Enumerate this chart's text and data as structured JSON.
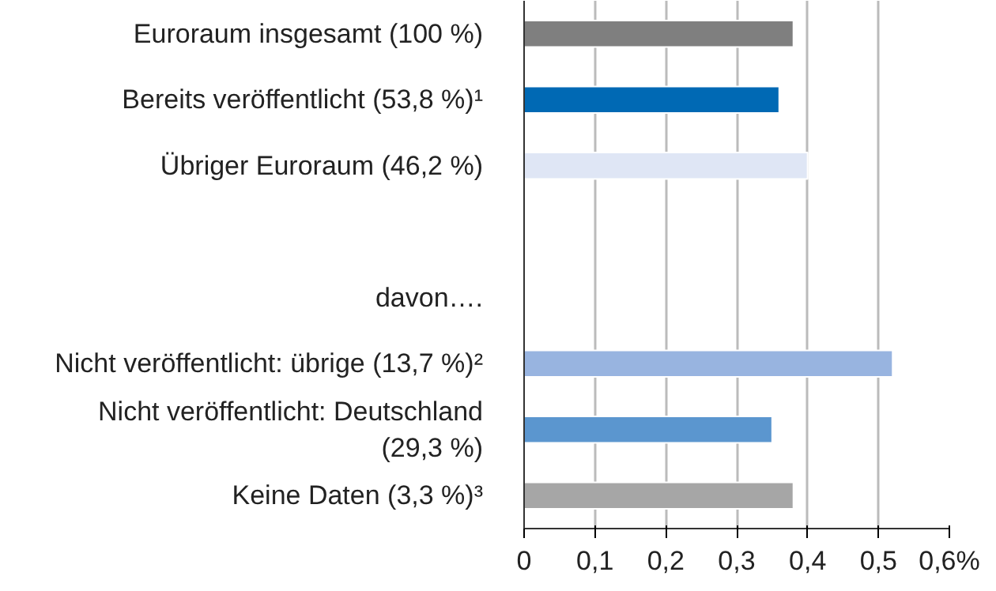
{
  "chart_data": {
    "type": "bar",
    "orientation": "horizontal",
    "categories": [
      "Euroraum insgesamt (100 %)",
      "Bereits veröffentlicht (53,8 %)¹",
      "Übriger Euroraum (46,2 %)",
      null,
      "davon….",
      "Nicht veröffentlicht: übrige (13,7 %)²",
      "Nicht veröffentlicht: Deutschland\n(29,3 %)",
      "Keine Daten (3,3 %)³"
    ],
    "values": [
      0.38,
      0.36,
      0.4,
      null,
      null,
      0.52,
      0.35,
      0.38
    ],
    "colors": [
      "#7f7f7f",
      "#0069b4",
      "#dfe6f5",
      null,
      null,
      "#98b4e0",
      "#5b96cf",
      "#a6a6a6"
    ],
    "xlim": [
      0,
      0.6
    ],
    "xticks": [
      0,
      {
        "value": 0.1,
        "label": "0,1"
      },
      {
        "value": 0.2,
        "label": "0,2"
      },
      {
        "value": 0.3,
        "label": "0,3"
      },
      {
        "value": 0.4,
        "label": "0,4"
      },
      {
        "value": 0.5,
        "label": "0,5"
      },
      {
        "value": 0.6,
        "label": "0,6%"
      }
    ],
    "grid": "x"
  }
}
